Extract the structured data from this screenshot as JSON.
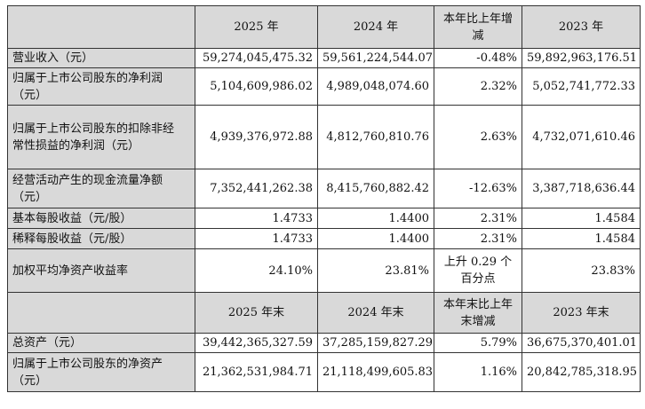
{
  "header1": {
    "col_2025": "2025 年",
    "col_2024": "2024 年",
    "col_change": "本年比上年增减",
    "col_2023": "2023 年"
  },
  "header2": {
    "col_2025": "2025 年末",
    "col_2024": "2024 年末",
    "col_change": "本年末比上年末增减",
    "col_2023": "2023 年末"
  },
  "rows_income": [
    {
      "label": "营业收入（元）",
      "v2025": "59,274,045,475.32",
      "v2024": "59,561,224,544.07",
      "change": "-0.48%",
      "v2023": "59,892,963,176.51"
    },
    {
      "label": "归属于上市公司股东的净利润（元）",
      "v2025": "5,104,609,986.02",
      "v2024": "4,989,048,074.60",
      "change": "2.32%",
      "v2023": "5,052,741,772.33"
    },
    {
      "label": "归属于上市公司股东的扣除非经常性损益的净利润（元）",
      "v2025": "4,939,376,972.88",
      "v2024": "4,812,760,810.76",
      "change": "2.63%",
      "v2023": "4,732,071,610.46"
    },
    {
      "label": "经营活动产生的现金流量净额（元）",
      "v2025": "7,352,441,262.38",
      "v2024": "8,415,760,882.42",
      "change": "-12.63%",
      "v2023": "3,387,718,636.44"
    },
    {
      "label": "基本每股收益（元/股）",
      "v2025": "1.4733",
      "v2024": "1.4400",
      "change": "2.31%",
      "v2023": "1.4584"
    },
    {
      "label": "稀释每股收益（元/股）",
      "v2025": "1.4733",
      "v2024": "1.4400",
      "change": "2.31%",
      "v2023": "1.4584"
    },
    {
      "label": "加权平均净资产收益率",
      "v2025": "24.10%",
      "v2024": "23.81%",
      "change": "上升 0.29 个百分点",
      "v2023": "23.83%"
    }
  ],
  "rows_balance": [
    {
      "label": "总资产（元）",
      "v2025": "39,442,365,327.59",
      "v2024": "37,285,159,827.29",
      "change": "5.79%",
      "v2023": "36,675,370,401.01"
    },
    {
      "label": "归属于上市公司股东的净资产（元）",
      "v2025": "21,362,531,984.71",
      "v2024": "21,118,499,605.83",
      "change": "1.16%",
      "v2023": "20,842,785,318.95"
    }
  ]
}
